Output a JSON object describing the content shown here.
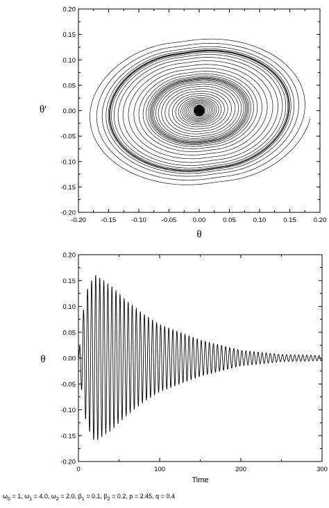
{
  "chart_data": [
    {
      "type": "line",
      "title": "",
      "xlabel": "θ",
      "ylabel": "θ'",
      "xlim": [
        -0.2,
        0.2
      ],
      "ylim": [
        -0.2,
        0.2
      ],
      "xticks": [
        "-0.20",
        "-0.15",
        "-0.10",
        "-0.05",
        "0.00",
        "0.05",
        "0.10",
        "0.15",
        "0.20"
      ],
      "yticks": [
        "0.20",
        "0.15",
        "0.10",
        "0.05",
        "0.00",
        "-0.05",
        "-0.10",
        "-0.15",
        "-0.20"
      ],
      "grid": false,
      "legend": "none",
      "series": [
        {
          "kind": "phase-portrait",
          "theta_extent": [
            -0.155,
            0.165
          ],
          "theta_prime_extent": [
            -0.16,
            0.13
          ],
          "center": [
            0.0,
            0.0
          ]
        }
      ]
    },
    {
      "type": "line",
      "title": "",
      "xlabel": "Time",
      "ylabel": "θ",
      "xlim": [
        0,
        300
      ],
      "ylim": [
        -0.2,
        0.2
      ],
      "xticks": [
        "0",
        "100",
        "200",
        "300"
      ],
      "yticks": [
        "0.20",
        "0.15",
        "0.10",
        "0.05",
        "0.00",
        "-0.05",
        "-0.10",
        "-0.15",
        "-0.20"
      ],
      "grid": false,
      "legend": "none",
      "series": [
        {
          "kind": "damped-oscillation",
          "peak_time": 22,
          "peak_amplitude": 0.162,
          "final_amplitude": 0.005,
          "oscillation_period": 5.0,
          "envelope_samples": [
            {
              "t": 0,
              "amp": 0.0
            },
            {
              "t": 5,
              "amp": 0.08
            },
            {
              "t": 10,
              "amp": 0.13
            },
            {
              "t": 20,
              "amp": 0.162
            },
            {
              "t": 40,
              "amp": 0.14
            },
            {
              "t": 60,
              "amp": 0.11
            },
            {
              "t": 80,
              "amp": 0.085
            },
            {
              "t": 100,
              "amp": 0.065
            },
            {
              "t": 150,
              "amp": 0.035
            },
            {
              "t": 200,
              "amp": 0.015
            },
            {
              "t": 250,
              "amp": 0.007
            },
            {
              "t": 300,
              "amp": 0.005
            }
          ]
        }
      ]
    }
  ],
  "caption": {
    "segments": [
      {
        "t": "ω"
      },
      {
        "sub": "0"
      },
      {
        "t": " = 1, ω"
      },
      {
        "sub": "1"
      },
      {
        "t": " = 4.0, ω"
      },
      {
        "sub": "2"
      },
      {
        "t": " = 2.0, β"
      },
      {
        "sub": "1"
      },
      {
        "t": " = 0.1, β"
      },
      {
        "sub": "2"
      },
      {
        "t": " = 0.2, p = 2.45, q = 0.4"
      }
    ]
  }
}
